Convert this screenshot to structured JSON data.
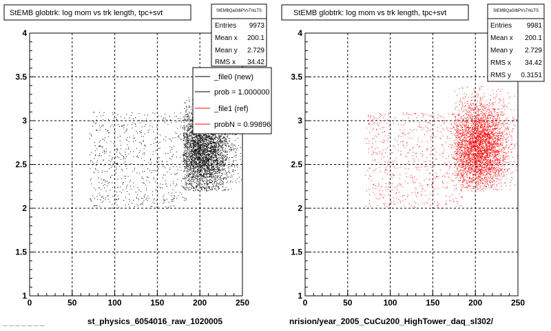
{
  "chart_data": [
    {
      "type": "scatter",
      "title": "StEMB globtrk: log mom vs trk length, tpc+svt",
      "xlabel": "st_physics_6054016_raw_1020005",
      "ylabel": "",
      "xlim": [
        0,
        250
      ],
      "ylim": [
        1,
        4
      ],
      "xticks": [
        "0",
        "50",
        "100",
        "150",
        "200",
        "250"
      ],
      "yticks": [
        "1",
        "1.5",
        "2",
        "2.5",
        "3",
        "3.5",
        "4"
      ],
      "grid": true,
      "color": "#000000",
      "stats": {
        "header": "StEMBQaGlbPVsTrkLTS",
        "rows": [
          {
            "label": "Entries",
            "value": "9973"
          },
          {
            "label": "Mean x",
            "value": "200.1"
          },
          {
            "label": "Mean y",
            "value": "2.729"
          },
          {
            "label": "RMS x",
            "value": "34.42"
          }
        ]
      },
      "legend": {
        "placement": "top-right",
        "entries": [
          {
            "label": "_file0 (new)",
            "color": "#000000"
          },
          {
            "label": "prob = 1.000000",
            "color": "#000000"
          },
          {
            "label": "_file1 (ref)",
            "color": "#ff0000"
          },
          {
            "label": "probN = 0.99896",
            "color": "#ff0000"
          }
        ]
      },
      "density": {
        "bulk": {
          "x_range": [
            180,
            250
          ],
          "y_range": [
            2.2,
            3.3
          ],
          "center": [
            205,
            2.65
          ]
        },
        "sparse": {
          "x_range": [
            70,
            185
          ],
          "y_range": [
            2.0,
            3.1
          ]
        }
      },
      "footer": "— — — — — — —"
    },
    {
      "type": "scatter",
      "title": "StEMB globtrk: log mom vs trk length, tpc+svt",
      "xlabel": "nrision/year_2005_CuCu200_HighTower_daq_sl302/",
      "ylabel": "",
      "xlim": [
        0,
        250
      ],
      "ylim": [
        1,
        4
      ],
      "xticks": [
        "0",
        "50",
        "100",
        "150",
        "200",
        "250"
      ],
      "yticks": [
        "1",
        "1.5",
        "2",
        "2.5",
        "3",
        "3.5",
        "4"
      ],
      "grid": true,
      "color": "#ff0000",
      "stats": {
        "header": "StEMBQaGlbPVsTrkLTS",
        "rows": [
          {
            "label": "Entries",
            "value": "9981"
          },
          {
            "label": "Mean x",
            "value": "200.1"
          },
          {
            "label": "Mean y",
            "value": "2.729"
          },
          {
            "label": "RMS x",
            "value": "34.42"
          },
          {
            "label": "RMS y",
            "value": "0.3151"
          }
        ]
      },
      "density": {
        "bulk": {
          "x_range": [
            175,
            250
          ],
          "y_range": [
            2.2,
            3.4
          ],
          "center": [
            205,
            2.7
          ]
        },
        "sparse": {
          "x_range": [
            70,
            185
          ],
          "y_range": [
            2.0,
            3.1
          ]
        }
      }
    }
  ]
}
